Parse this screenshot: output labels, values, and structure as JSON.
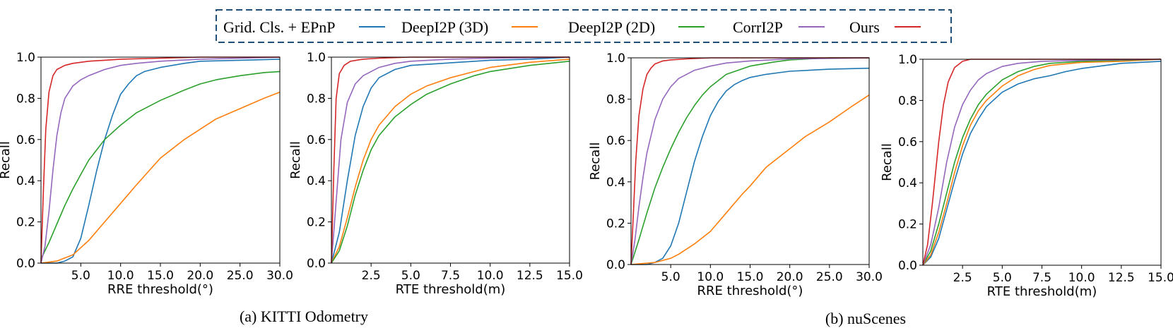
{
  "legend": {
    "placement": "top-center",
    "items": [
      {
        "label": "Grid. Cls. + EPnP",
        "color": "#1f77b4"
      },
      {
        "label": "DeepI2P (3D)",
        "color": "#ff7f0e"
      },
      {
        "label": "DeepI2P (2D)",
        "color": "#2ca02c"
      },
      {
        "label": "CorrI2P",
        "color": "#9467bd"
      },
      {
        "label": "Ours",
        "color": "#d62728"
      }
    ]
  },
  "captions": {
    "a": "(a) KITTI Odometry",
    "b": "(b) nuScenes"
  },
  "chart_data": [
    {
      "type": "line",
      "dataset": "KITTI Odometry",
      "xlabel": "RRE threshold(°)",
      "ylabel": "Recall",
      "xlim": [
        0,
        30
      ],
      "ylim": [
        0,
        1
      ],
      "xticks": [
        5,
        10,
        15,
        20,
        25,
        30
      ],
      "xtick_labels": [
        "5.0",
        "10.0",
        "15.0",
        "20.0",
        "25.0",
        "30.0"
      ],
      "yticks": [
        0,
        0.2,
        0.4,
        0.6,
        0.8,
        1.0
      ],
      "ytick_labels": [
        "0.0",
        "0.2",
        "0.4",
        "0.6",
        "0.8",
        "1.0"
      ],
      "series": [
        {
          "name": "Grid. Cls. + EPnP",
          "color": "#1f77b4",
          "x": [
            0,
            2,
            3,
            4,
            5,
            6,
            7,
            8,
            9,
            10,
            11,
            12,
            13,
            15,
            18,
            20,
            25,
            30
          ],
          "y": [
            0,
            0.0,
            0.01,
            0.03,
            0.12,
            0.28,
            0.45,
            0.6,
            0.72,
            0.82,
            0.87,
            0.91,
            0.93,
            0.95,
            0.97,
            0.98,
            0.985,
            0.99
          ]
        },
        {
          "name": "DeepI2P (3D)",
          "color": "#ff7f0e",
          "x": [
            0,
            2,
            4,
            6,
            8,
            10,
            12,
            15,
            18,
            20,
            22,
            25,
            28,
            30
          ],
          "y": [
            0,
            0.01,
            0.04,
            0.11,
            0.2,
            0.29,
            0.38,
            0.51,
            0.6,
            0.65,
            0.7,
            0.75,
            0.8,
            0.83
          ]
        },
        {
          "name": "DeepI2P (2D)",
          "color": "#2ca02c",
          "x": [
            0,
            1,
            2,
            3,
            4,
            5,
            6,
            7,
            8,
            10,
            12,
            15,
            18,
            20,
            22,
            25,
            28,
            30
          ],
          "y": [
            0.02,
            0.1,
            0.19,
            0.28,
            0.36,
            0.43,
            0.5,
            0.55,
            0.6,
            0.67,
            0.73,
            0.79,
            0.84,
            0.87,
            0.89,
            0.91,
            0.925,
            0.93
          ]
        },
        {
          "name": "CorrI2P",
          "color": "#9467bd",
          "x": [
            0,
            0.5,
            1,
            1.5,
            2,
            2.5,
            3,
            4,
            5,
            6,
            8,
            10,
            12,
            15,
            20,
            25,
            30
          ],
          "y": [
            0,
            0.08,
            0.25,
            0.45,
            0.62,
            0.73,
            0.8,
            0.86,
            0.89,
            0.91,
            0.94,
            0.96,
            0.97,
            0.98,
            0.99,
            0.995,
            1.0
          ]
        },
        {
          "name": "Ours",
          "color": "#d62728",
          "x": [
            0,
            0.3,
            0.6,
            1,
            1.5,
            2,
            3,
            4,
            6,
            8,
            10,
            15,
            20,
            30
          ],
          "y": [
            0,
            0.35,
            0.65,
            0.83,
            0.91,
            0.94,
            0.96,
            0.97,
            0.98,
            0.985,
            0.99,
            0.995,
            1.0,
            1.0
          ]
        }
      ]
    },
    {
      "type": "line",
      "dataset": "KITTI Odometry",
      "xlabel": "RTE threshold(m)",
      "ylabel": "Recall",
      "xlim": [
        0,
        15
      ],
      "ylim": [
        0,
        1
      ],
      "xticks": [
        2.5,
        5,
        7.5,
        10,
        12.5,
        15
      ],
      "xtick_labels": [
        "2.5",
        "5.0",
        "7.5",
        "10.0",
        "12.5",
        "15.0"
      ],
      "yticks": [
        0,
        0.2,
        0.4,
        0.6,
        0.8,
        1.0
      ],
      "ytick_labels": [
        "0.0",
        "0.2",
        "0.4",
        "0.6",
        "0.8",
        "1.0"
      ],
      "series": [
        {
          "name": "Grid. Cls. + EPnP",
          "color": "#1f77b4",
          "x": [
            0,
            0.5,
            1,
            1.5,
            2,
            2.5,
            3,
            4,
            5,
            7,
            10,
            12.5,
            15
          ],
          "y": [
            0,
            0.15,
            0.4,
            0.62,
            0.76,
            0.85,
            0.9,
            0.94,
            0.96,
            0.97,
            0.985,
            0.99,
            1.0
          ]
        },
        {
          "name": "DeepI2P (3D)",
          "color": "#ff7f0e",
          "x": [
            0,
            0.5,
            1,
            1.5,
            2,
            2.5,
            3,
            4,
            5,
            6,
            7.5,
            9,
            10,
            12.5,
            15
          ],
          "y": [
            0,
            0.08,
            0.22,
            0.37,
            0.5,
            0.6,
            0.67,
            0.76,
            0.82,
            0.86,
            0.9,
            0.93,
            0.95,
            0.975,
            0.99
          ]
        },
        {
          "name": "DeepI2P (2D)",
          "color": "#2ca02c",
          "x": [
            0,
            0.5,
            1,
            1.5,
            2,
            2.5,
            3,
            4,
            5,
            6,
            7.5,
            9,
            10,
            12.5,
            15
          ],
          "y": [
            0,
            0.06,
            0.18,
            0.33,
            0.45,
            0.55,
            0.62,
            0.71,
            0.77,
            0.82,
            0.87,
            0.91,
            0.93,
            0.96,
            0.98
          ]
        },
        {
          "name": "CorrI2P",
          "color": "#9467bd",
          "x": [
            0,
            0.3,
            0.6,
            1,
            1.5,
            2,
            2.5,
            3,
            4,
            5,
            7.5,
            10,
            15
          ],
          "y": [
            0,
            0.3,
            0.6,
            0.78,
            0.87,
            0.91,
            0.93,
            0.95,
            0.97,
            0.98,
            0.99,
            0.995,
            1.0
          ]
        },
        {
          "name": "Ours",
          "color": "#d62728",
          "x": [
            0,
            0.15,
            0.3,
            0.5,
            0.8,
            1.2,
            2,
            3,
            5,
            10,
            15
          ],
          "y": [
            0,
            0.45,
            0.8,
            0.92,
            0.96,
            0.98,
            0.99,
            0.995,
            1.0,
            1.0,
            1.0
          ]
        }
      ]
    },
    {
      "type": "line",
      "dataset": "nuScenes",
      "xlabel": "RRE threshold(°)",
      "ylabel": "Recall",
      "xlim": [
        0,
        30
      ],
      "ylim": [
        0,
        1
      ],
      "xticks": [
        5,
        10,
        15,
        20,
        25,
        30
      ],
      "xtick_labels": [
        "5.0",
        "10.0",
        "15.0",
        "20.0",
        "25.0",
        "30.0"
      ],
      "yticks": [
        0,
        0.2,
        0.4,
        0.6,
        0.8,
        1.0
      ],
      "ytick_labels": [
        "0.0",
        "0.2",
        "0.4",
        "0.6",
        "0.8",
        "1.0"
      ],
      "series": [
        {
          "name": "Grid. Cls. + EPnP",
          "color": "#1f77b4",
          "x": [
            0,
            2,
            3,
            4,
            5,
            6,
            7,
            8,
            9,
            10,
            11,
            12,
            13,
            14,
            15,
            17,
            20,
            25,
            30
          ],
          "y": [
            0,
            0.0,
            0.01,
            0.03,
            0.09,
            0.2,
            0.35,
            0.5,
            0.62,
            0.72,
            0.79,
            0.84,
            0.87,
            0.89,
            0.905,
            0.92,
            0.935,
            0.945,
            0.95
          ]
        },
        {
          "name": "DeepI2P (3D)",
          "color": "#ff7f0e",
          "x": [
            0,
            3,
            5,
            6,
            8,
            10,
            12,
            14,
            15,
            17,
            20,
            22,
            25,
            28,
            30
          ],
          "y": [
            0,
            0.01,
            0.03,
            0.05,
            0.1,
            0.16,
            0.25,
            0.34,
            0.38,
            0.47,
            0.56,
            0.62,
            0.69,
            0.77,
            0.82
          ]
        },
        {
          "name": "DeepI2P (2D)",
          "color": "#2ca02c",
          "x": [
            0,
            1,
            2,
            3,
            4,
            5,
            6,
            7,
            8,
            9,
            10,
            12,
            15,
            18,
            20,
            25,
            30
          ],
          "y": [
            0,
            0.12,
            0.25,
            0.37,
            0.47,
            0.56,
            0.64,
            0.71,
            0.77,
            0.82,
            0.86,
            0.92,
            0.96,
            0.98,
            0.99,
            1.0,
            1.0
          ]
        },
        {
          "name": "CorrI2P",
          "color": "#9467bd",
          "x": [
            0,
            0.5,
            1,
            1.5,
            2,
            3,
            4,
            5,
            6,
            7,
            8,
            10,
            12,
            15,
            20,
            30
          ],
          "y": [
            0,
            0.12,
            0.28,
            0.42,
            0.54,
            0.7,
            0.8,
            0.86,
            0.9,
            0.92,
            0.94,
            0.96,
            0.975,
            0.985,
            0.995,
            1.0
          ]
        },
        {
          "name": "Ours",
          "color": "#d62728",
          "x": [
            0,
            0.3,
            0.6,
            1,
            1.5,
            2,
            2.5,
            3,
            4,
            5,
            7,
            10,
            15,
            30
          ],
          "y": [
            0,
            0.25,
            0.5,
            0.72,
            0.85,
            0.92,
            0.95,
            0.97,
            0.985,
            0.99,
            0.995,
            1.0,
            1.0,
            1.0
          ]
        }
      ]
    },
    {
      "type": "line",
      "dataset": "nuScenes",
      "xlabel": "RTE threshold(m)",
      "ylabel": "Recall",
      "xlim": [
        0,
        15
      ],
      "ylim": [
        0,
        1
      ],
      "xticks": [
        2.5,
        5,
        7.5,
        10,
        12.5,
        15
      ],
      "xtick_labels": [
        "2.5",
        "5.0",
        "7.5",
        "10.0",
        "12.5",
        "15.0"
      ],
      "yticks": [
        0,
        0.2,
        0.4,
        0.6,
        0.8,
        1.0
      ],
      "ytick_labels": [
        "0.0",
        "0.2",
        "0.4",
        "0.6",
        "0.8",
        "1.0"
      ],
      "series": [
        {
          "name": "Grid. Cls. + EPnP",
          "color": "#1f77b4",
          "x": [
            0,
            0.5,
            1,
            1.5,
            2,
            2.5,
            3,
            3.5,
            4,
            5,
            6,
            7,
            8,
            9,
            10,
            12.5,
            15
          ],
          "y": [
            0,
            0.04,
            0.13,
            0.27,
            0.41,
            0.54,
            0.64,
            0.71,
            0.77,
            0.84,
            0.88,
            0.905,
            0.92,
            0.94,
            0.955,
            0.98,
            0.99
          ]
        },
        {
          "name": "DeepI2P (3D)",
          "color": "#ff7f0e",
          "x": [
            0,
            0.5,
            1,
            1.5,
            2,
            2.5,
            3,
            3.5,
            4,
            5,
            6,
            7,
            8,
            10,
            12.5,
            15
          ],
          "y": [
            0,
            0.05,
            0.16,
            0.3,
            0.45,
            0.58,
            0.68,
            0.75,
            0.8,
            0.87,
            0.92,
            0.95,
            0.97,
            0.985,
            0.99,
            1.0
          ]
        },
        {
          "name": "DeepI2P (2D)",
          "color": "#2ca02c",
          "x": [
            0,
            0.5,
            1,
            1.5,
            2,
            2.5,
            3,
            3.5,
            4,
            5,
            6,
            7,
            8,
            10,
            12.5,
            15
          ],
          "y": [
            0,
            0.07,
            0.2,
            0.35,
            0.5,
            0.62,
            0.71,
            0.78,
            0.83,
            0.9,
            0.94,
            0.965,
            0.98,
            0.99,
            0.995,
            1.0
          ]
        },
        {
          "name": "CorrI2P",
          "color": "#9467bd",
          "x": [
            0,
            0.5,
            1,
            1.5,
            2,
            2.5,
            3,
            3.5,
            4,
            5,
            6,
            7.5,
            10,
            15
          ],
          "y": [
            0,
            0.1,
            0.28,
            0.5,
            0.67,
            0.78,
            0.85,
            0.9,
            0.93,
            0.965,
            0.98,
            0.99,
            0.995,
            1.0
          ]
        },
        {
          "name": "Ours",
          "color": "#d62728",
          "x": [
            0,
            0.3,
            0.6,
            1,
            1.3,
            1.6,
            2,
            2.5,
            3,
            4,
            5,
            10,
            15
          ],
          "y": [
            0,
            0.1,
            0.3,
            0.6,
            0.78,
            0.89,
            0.96,
            0.99,
            1.0,
            1.0,
            1.0,
            1.0,
            1.0
          ]
        }
      ]
    }
  ]
}
